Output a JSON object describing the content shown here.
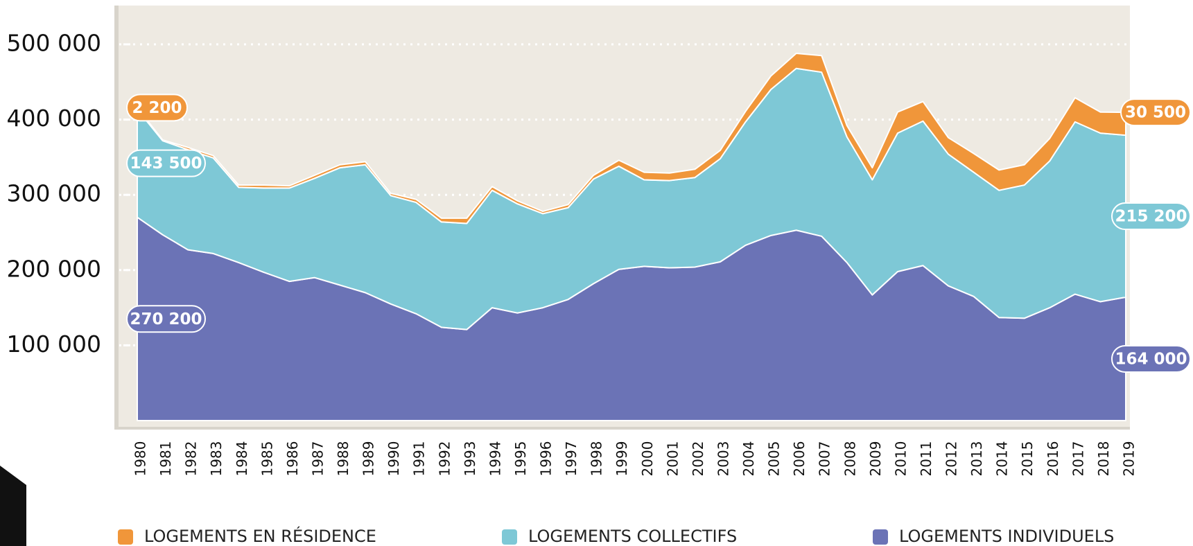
{
  "chart_data": {
    "type": "stacked_area",
    "categories": [
      "1980",
      "1981",
      "1982",
      "1983",
      "1984",
      "1985",
      "1986",
      "1987",
      "1988",
      "1989",
      "1990",
      "1991",
      "1992",
      "1993",
      "1994",
      "1995",
      "1996",
      "1997",
      "1998",
      "1999",
      "2000",
      "2001",
      "2002",
      "2003",
      "2004",
      "2005",
      "2006",
      "2007",
      "2008",
      "2009",
      "2010",
      "2011",
      "2012",
      "2013",
      "2014",
      "2015",
      "2016",
      "2017",
      "2018",
      "2019"
    ],
    "series": [
      {
        "name": "LOGEMENTS INDIVIDUELS",
        "color": "#6b73b6",
        "values": [
          270200,
          247000,
          227000,
          222000,
          210000,
          197000,
          185000,
          190000,
          180000,
          170000,
          155000,
          142000,
          124000,
          121000,
          150000,
          143000,
          150000,
          161000,
          182000,
          201000,
          205000,
          203000,
          204000,
          211000,
          233000,
          246000,
          253000,
          245000,
          210000,
          167000,
          198000,
          206000,
          179000,
          165000,
          137000,
          136000,
          150000,
          168000,
          158000,
          164000
        ],
        "value_labels": [
          "270 200",
          null,
          null,
          null,
          null,
          null,
          null,
          null,
          null,
          null,
          null,
          null,
          null,
          null,
          null,
          null,
          null,
          null,
          null,
          null,
          null,
          null,
          null,
          null,
          null,
          null,
          null,
          null,
          null,
          null,
          null,
          null,
          null,
          null,
          null,
          null,
          null,
          null,
          null,
          "164 000"
        ]
      },
      {
        "name": "LOGEMENTS COLLECTIFS",
        "color": "#7ec8d6",
        "values": [
          143500,
          125000,
          133000,
          127000,
          100000,
          112000,
          124000,
          132000,
          156000,
          170000,
          144000,
          148000,
          140000,
          141000,
          156000,
          145000,
          125000,
          122000,
          139000,
          137000,
          115000,
          116000,
          119000,
          137000,
          164000,
          194000,
          215000,
          218000,
          167000,
          153000,
          184000,
          192000,
          175000,
          165000,
          169000,
          177000,
          195000,
          229000,
          224000,
          215200
        ],
        "value_labels": [
          "143 500",
          null,
          null,
          null,
          null,
          null,
          null,
          null,
          null,
          null,
          null,
          null,
          null,
          null,
          null,
          null,
          null,
          null,
          null,
          null,
          null,
          null,
          null,
          null,
          null,
          null,
          null,
          null,
          null,
          null,
          null,
          null,
          null,
          null,
          null,
          null,
          null,
          null,
          null,
          "215 200"
        ]
      },
      {
        "name": "LOGEMENTS EN RÉSIDENCE",
        "color": "#f0963a",
        "values": [
          2200,
          1000,
          3000,
          3000,
          3000,
          4000,
          3000,
          4000,
          4000,
          4000,
          3000,
          4000,
          5000,
          7000,
          5000,
          4000,
          3000,
          4000,
          5000,
          8000,
          10000,
          10000,
          11000,
          11000,
          14000,
          18000,
          20000,
          22000,
          15000,
          16000,
          28000,
          26000,
          22000,
          25000,
          27000,
          27000,
          30000,
          32000,
          28000,
          30500
        ],
        "value_labels": [
          "2 200",
          null,
          null,
          null,
          null,
          null,
          null,
          null,
          null,
          null,
          null,
          null,
          null,
          null,
          null,
          null,
          null,
          null,
          null,
          null,
          null,
          null,
          null,
          null,
          null,
          null,
          null,
          null,
          null,
          null,
          null,
          null,
          null,
          null,
          null,
          null,
          null,
          null,
          null,
          "30 500"
        ]
      }
    ],
    "ylim": [
      0,
      550000
    ],
    "yticks": [
      {
        "value": 100000,
        "label": "100 000"
      },
      {
        "value": 200000,
        "label": "200 000"
      },
      {
        "value": 300000,
        "label": "300 000"
      },
      {
        "value": 400000,
        "label": "400 000"
      },
      {
        "value": 500000,
        "label": "500 000"
      }
    ],
    "grid": true
  }
}
